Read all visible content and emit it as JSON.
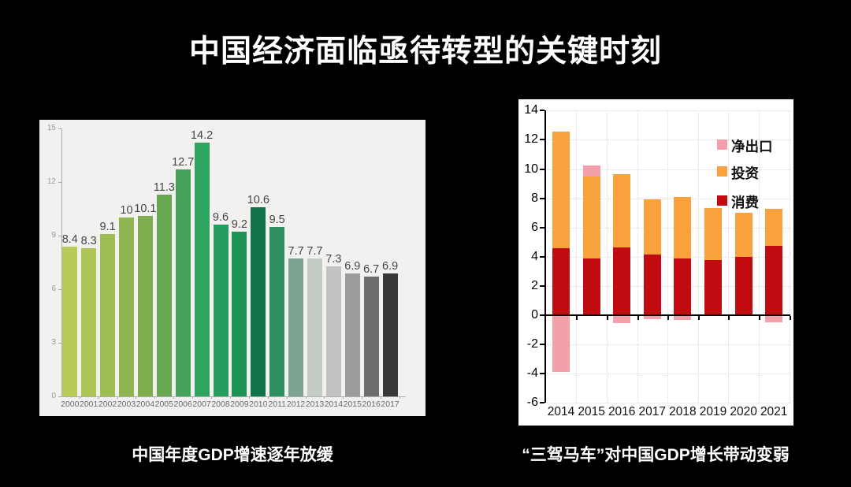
{
  "slide": {
    "title": "中国经济面临亟待转型的关键时刻",
    "left_caption": "中国年度GDP增速逐年放缓",
    "right_caption": "“三驾马车”对中国GDP增长带动变弱"
  },
  "chart_data": [
    {
      "id": "china-gdp-growth",
      "type": "bar",
      "title": "中国年度GDP增速逐年放缓",
      "categories": [
        "2000",
        "2001",
        "2002",
        "2003",
        "2004",
        "2005",
        "2006",
        "2007",
        "2008",
        "2009",
        "2010",
        "2011",
        "2012",
        "2013",
        "2014",
        "2015",
        "2016",
        "2017"
      ],
      "values": [
        8.4,
        8.3,
        9.1,
        10,
        10.1,
        11.3,
        12.7,
        14.2,
        9.6,
        9.2,
        10.6,
        9.5,
        7.7,
        7.7,
        7.3,
        6.9,
        6.7,
        6.9
      ],
      "bar_colors": [
        "#b7ca5a",
        "#adc457",
        "#9ebd53",
        "#8eb550",
        "#7fae4e",
        "#67a751",
        "#46a258",
        "#2ea45f",
        "#269d5c",
        "#1e9355",
        "#11734a",
        "#2e8f63",
        "#7da491",
        "#c5ccc6",
        "#c1c2c1",
        "#9b9b9b",
        "#6d6d6d",
        "#383838"
      ],
      "xlabel": "",
      "ylabel": "",
      "ylim": [
        0,
        15
      ],
      "yticks": [
        0,
        3,
        6,
        9,
        12,
        15
      ],
      "grid": false,
      "panel_bg": "#f2f1ef",
      "value_labels": true
    },
    {
      "id": "troika-gdp-contribution",
      "type": "bar",
      "stacked": true,
      "title": "“三驾马车”对中国GDP增长带动变弱",
      "categories": [
        "2014",
        "2015",
        "2016",
        "2017",
        "2018",
        "2019",
        "2020",
        "2021"
      ],
      "series": [
        {
          "name": "净出口",
          "color": "#f3a0ab",
          "values": [
            -3.9,
            0.75,
            -0.55,
            -0.25,
            -0.3,
            0,
            0,
            -0.5
          ]
        },
        {
          "name": "投资",
          "color": "#f9a13c",
          "values": [
            7.95,
            5.6,
            5.0,
            3.8,
            4.2,
            3.55,
            3.0,
            2.55
          ]
        },
        {
          "name": "消费",
          "color": "#c00b10",
          "values": [
            4.6,
            3.9,
            4.65,
            4.15,
            3.9,
            3.8,
            4.0,
            4.75
          ]
        }
      ],
      "xlabel": "",
      "ylabel": "",
      "ylim": [
        -6,
        14
      ],
      "yticks": [
        -6,
        -4,
        -2,
        0,
        2,
        4,
        6,
        8,
        10,
        12,
        14
      ],
      "grid": true,
      "grid_style": "dotted",
      "legend_position": "upper right",
      "legend_order": [
        "净出口",
        "投资",
        "消费"
      ],
      "panel_bg": "#ffffff"
    }
  ]
}
